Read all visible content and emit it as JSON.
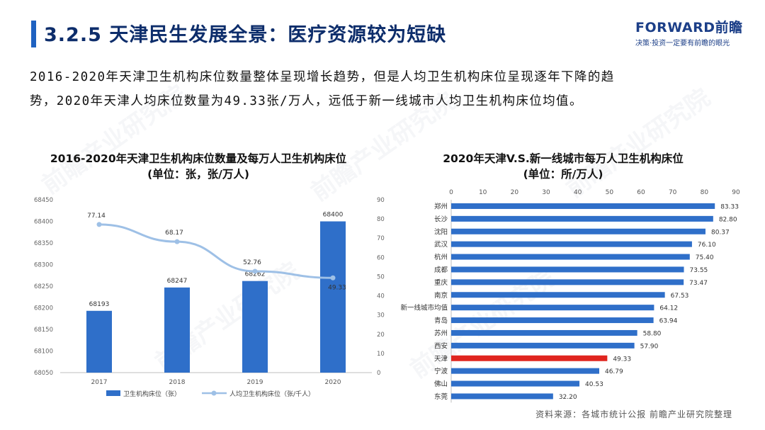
{
  "header": {
    "title": "3.2.5 天津民生发展全景：医疗资源较为短缺",
    "logo_main": "FORWARD前瞻",
    "logo_tagline": "决策·投资一定要有前瞻的眼光"
  },
  "description": [
    "2016-2020年天津卫生机构床位数量整体呈现增长趋势，但是人均卫生机构床位呈现逐年下降的趋",
    "势，2020年天津人均床位数量为49.33张/万人，远低于新一线城市人均卫生机构床位均值。"
  ],
  "source": "资料来源：各城市统计公报 前瞻产业研究院整理",
  "colors": {
    "bar": "#2f6fc9",
    "line": "#9ec0e6",
    "highlight": "#e0251f",
    "title": "#0d2d6b"
  },
  "chart_data": [
    {
      "type": "bar",
      "title_line1": "2016-2020年天津卫生机构床位数量及每万人卫生机构床位",
      "title_line2": "(单位：张，张/万人)",
      "categories": [
        "2017",
        "2018",
        "2019",
        "2020"
      ],
      "series": [
        {
          "name": "卫生机构床位（张）",
          "type": "bar",
          "axis": "left",
          "values": [
            68193,
            68247,
            68262,
            68400
          ]
        },
        {
          "name": "人均卫生机构床位（张/千人）",
          "type": "line",
          "axis": "right",
          "values": [
            77.14,
            68.17,
            52.76,
            49.33
          ]
        }
      ],
      "y_left": {
        "min": 68050,
        "max": 68450,
        "ticks": [
          "68050",
          "68100",
          "68150",
          "68200",
          "68250",
          "68300",
          "68350",
          "68400",
          "68450"
        ]
      },
      "y_right": {
        "min": 0,
        "max": 90,
        "ticks": [
          "0",
          "10",
          "20",
          "30",
          "40",
          "50",
          "60",
          "70",
          "80",
          "90"
        ]
      },
      "bar_labels": [
        "68193",
        "68247",
        "68262",
        "68400"
      ],
      "line_labels": [
        "77.14",
        "68.17",
        "52.76",
        "49.33"
      ],
      "legend_position": "bottom",
      "grid": false
    },
    {
      "type": "bar",
      "orientation": "horizontal",
      "title_line1": "2020年天津V.S.新一线城市每万人卫生机构床位",
      "title_line2": "(单位：所/万人)",
      "categories": [
        "郑州",
        "长沙",
        "沈阳",
        "武汉",
        "杭州",
        "成都",
        "重庆",
        "南京",
        "新一线城市均值",
        "青岛",
        "苏州",
        "西安",
        "天津",
        "宁波",
        "佛山",
        "东莞"
      ],
      "values": [
        83.33,
        82.8,
        80.37,
        76.1,
        75.4,
        73.55,
        73.47,
        67.53,
        64.12,
        63.94,
        58.8,
        57.9,
        49.33,
        46.79,
        40.53,
        32.2
      ],
      "value_labels": [
        "83.33",
        "82.80",
        "80.37",
        "76.10",
        "75.40",
        "73.55",
        "73.47",
        "67.53",
        "64.12",
        "63.94",
        "58.80",
        "57.90",
        "49.33",
        "46.79",
        "40.53",
        "32.20"
      ],
      "highlight": "天津",
      "x_axis": {
        "min": 0,
        "max": 90,
        "ticks": [
          "0",
          "10",
          "20",
          "30",
          "40",
          "50",
          "60",
          "70",
          "80",
          "90"
        ],
        "position": "top"
      },
      "grid": false
    }
  ]
}
